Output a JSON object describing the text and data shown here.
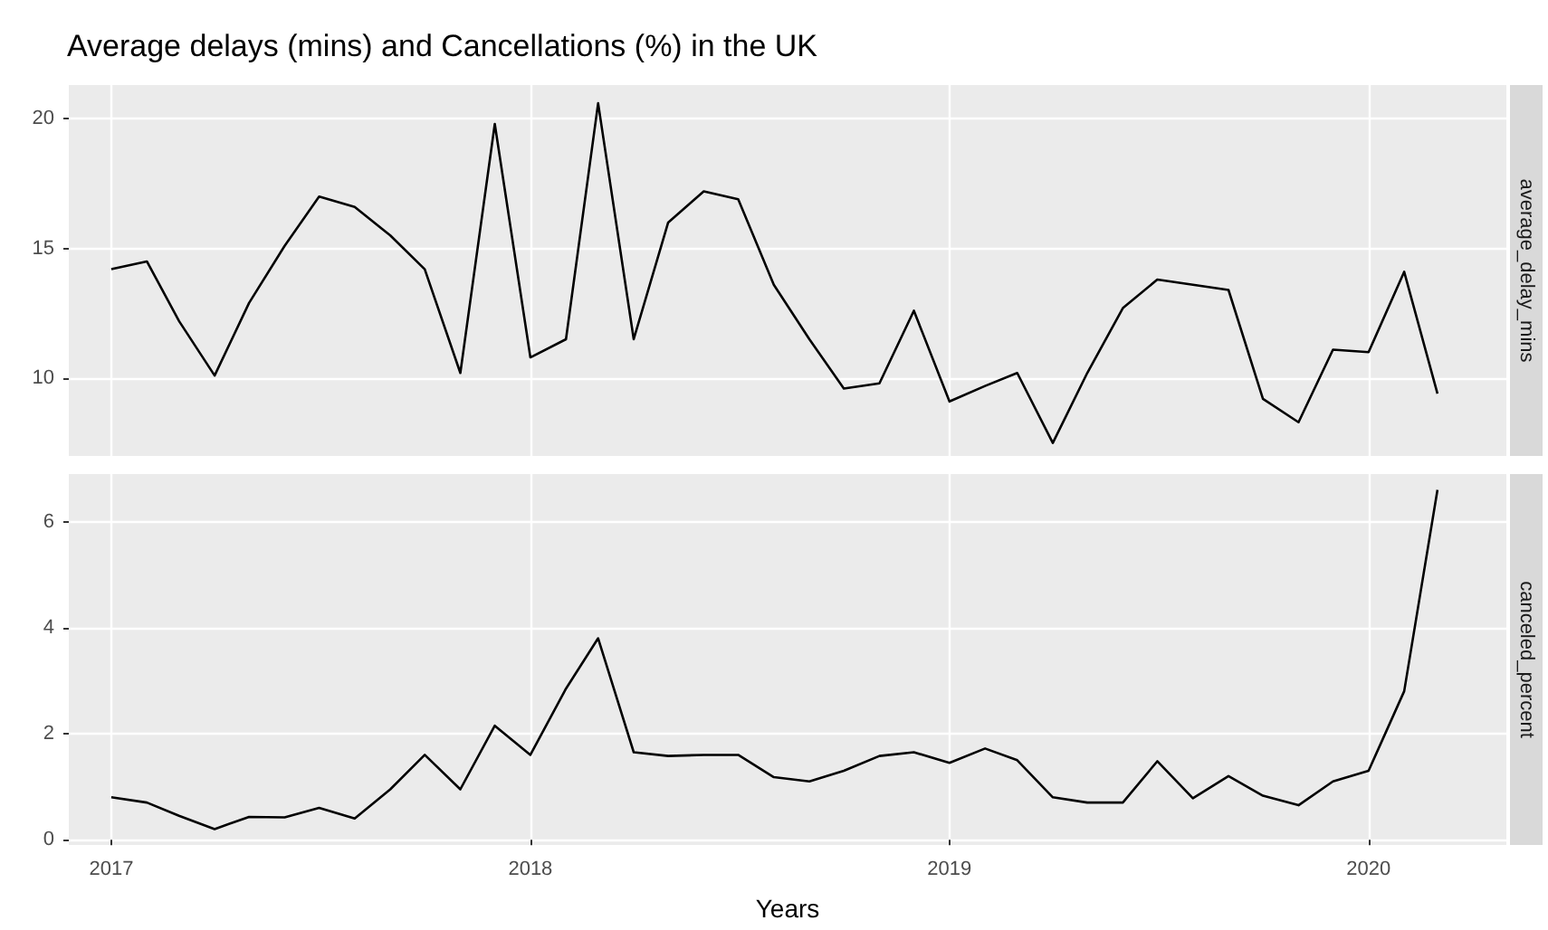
{
  "chart_data": [
    {
      "type": "line",
      "title": "Average delays (mins) and Cancellations (%) in the UK",
      "y2label": "average_delay_mins",
      "x": [
        "2017-01",
        "2017-02",
        "2017-03",
        "2017-04",
        "2017-05",
        "2017-06",
        "2017-07",
        "2017-08",
        "2017-09",
        "2017-10",
        "2017-11",
        "2017-12",
        "2018-01",
        "2018-02",
        "2018-03",
        "2018-04",
        "2018-05",
        "2018-06",
        "2018-07",
        "2018-08",
        "2018-09",
        "2018-10",
        "2018-11",
        "2018-12",
        "2019-01",
        "2019-02",
        "2019-03",
        "2019-04",
        "2019-05",
        "2019-06",
        "2019-07",
        "2019-08",
        "2019-09",
        "2019-10",
        "2019-11",
        "2019-12",
        "2020-01",
        "2020-02",
        "2020-03"
      ],
      "series": [
        {
          "color": "#000000",
          "values": [
            14.2,
            14.5,
            12.2,
            10.1,
            12.9,
            15.1,
            17.0,
            16.6,
            15.5,
            14.2,
            10.2,
            19.8,
            10.8,
            11.5,
            20.6,
            11.5,
            16.0,
            17.2,
            16.9,
            13.6,
            11.5,
            9.6,
            9.8,
            12.6,
            9.1,
            9.7,
            10.2,
            7.5,
            10.2,
            12.7,
            13.8,
            13.6,
            13.4,
            9.2,
            8.3,
            11.1,
            11.0,
            14.1,
            9.4
          ]
        }
      ],
      "xlim": [
        "2016-11-25",
        "2020-04-30"
      ],
      "xticks": [
        "2017",
        "2018",
        "2019",
        "2020"
      ],
      "ylim": [
        7.0,
        21.3
      ],
      "yticks": [
        10,
        15,
        20
      ],
      "grid": true,
      "tick_labels": "y"
    },
    {
      "type": "line",
      "xlabel": "Years",
      "y2label": "canceled_percent",
      "x": [
        "2017-01",
        "2017-02",
        "2017-03",
        "2017-04",
        "2017-05",
        "2017-06",
        "2017-07",
        "2017-08",
        "2017-09",
        "2017-10",
        "2017-11",
        "2017-12",
        "2018-01",
        "2018-02",
        "2018-03",
        "2018-04",
        "2018-05",
        "2018-06",
        "2018-07",
        "2018-08",
        "2018-09",
        "2018-10",
        "2018-11",
        "2018-12",
        "2019-01",
        "2019-02",
        "2019-03",
        "2019-04",
        "2019-05",
        "2019-06",
        "2019-07",
        "2019-08",
        "2019-09",
        "2019-10",
        "2019-11",
        "2019-12",
        "2020-01",
        "2020-02",
        "2020-03"
      ],
      "series": [
        {
          "color": "#000000",
          "values": [
            0.8,
            0.7,
            0.45,
            0.2,
            0.43,
            0.42,
            0.6,
            0.4,
            0.95,
            1.6,
            0.95,
            2.15,
            1.6,
            2.85,
            3.8,
            1.65,
            1.58,
            1.6,
            1.6,
            1.18,
            1.1,
            1.3,
            1.58,
            1.65,
            1.45,
            1.72,
            1.5,
            0.8,
            0.7,
            0.7,
            1.48,
            0.78,
            1.2,
            0.83,
            0.65,
            1.1,
            1.3,
            2.8,
            6.6
          ]
        }
      ],
      "xlim": [
        "2016-11-25",
        "2020-04-30"
      ],
      "xticks": [
        "2017",
        "2018",
        "2019",
        "2020"
      ],
      "ylim": [
        -0.1,
        6.9
      ],
      "yticks": [
        0,
        2,
        4,
        6
      ],
      "grid": true
    }
  ]
}
